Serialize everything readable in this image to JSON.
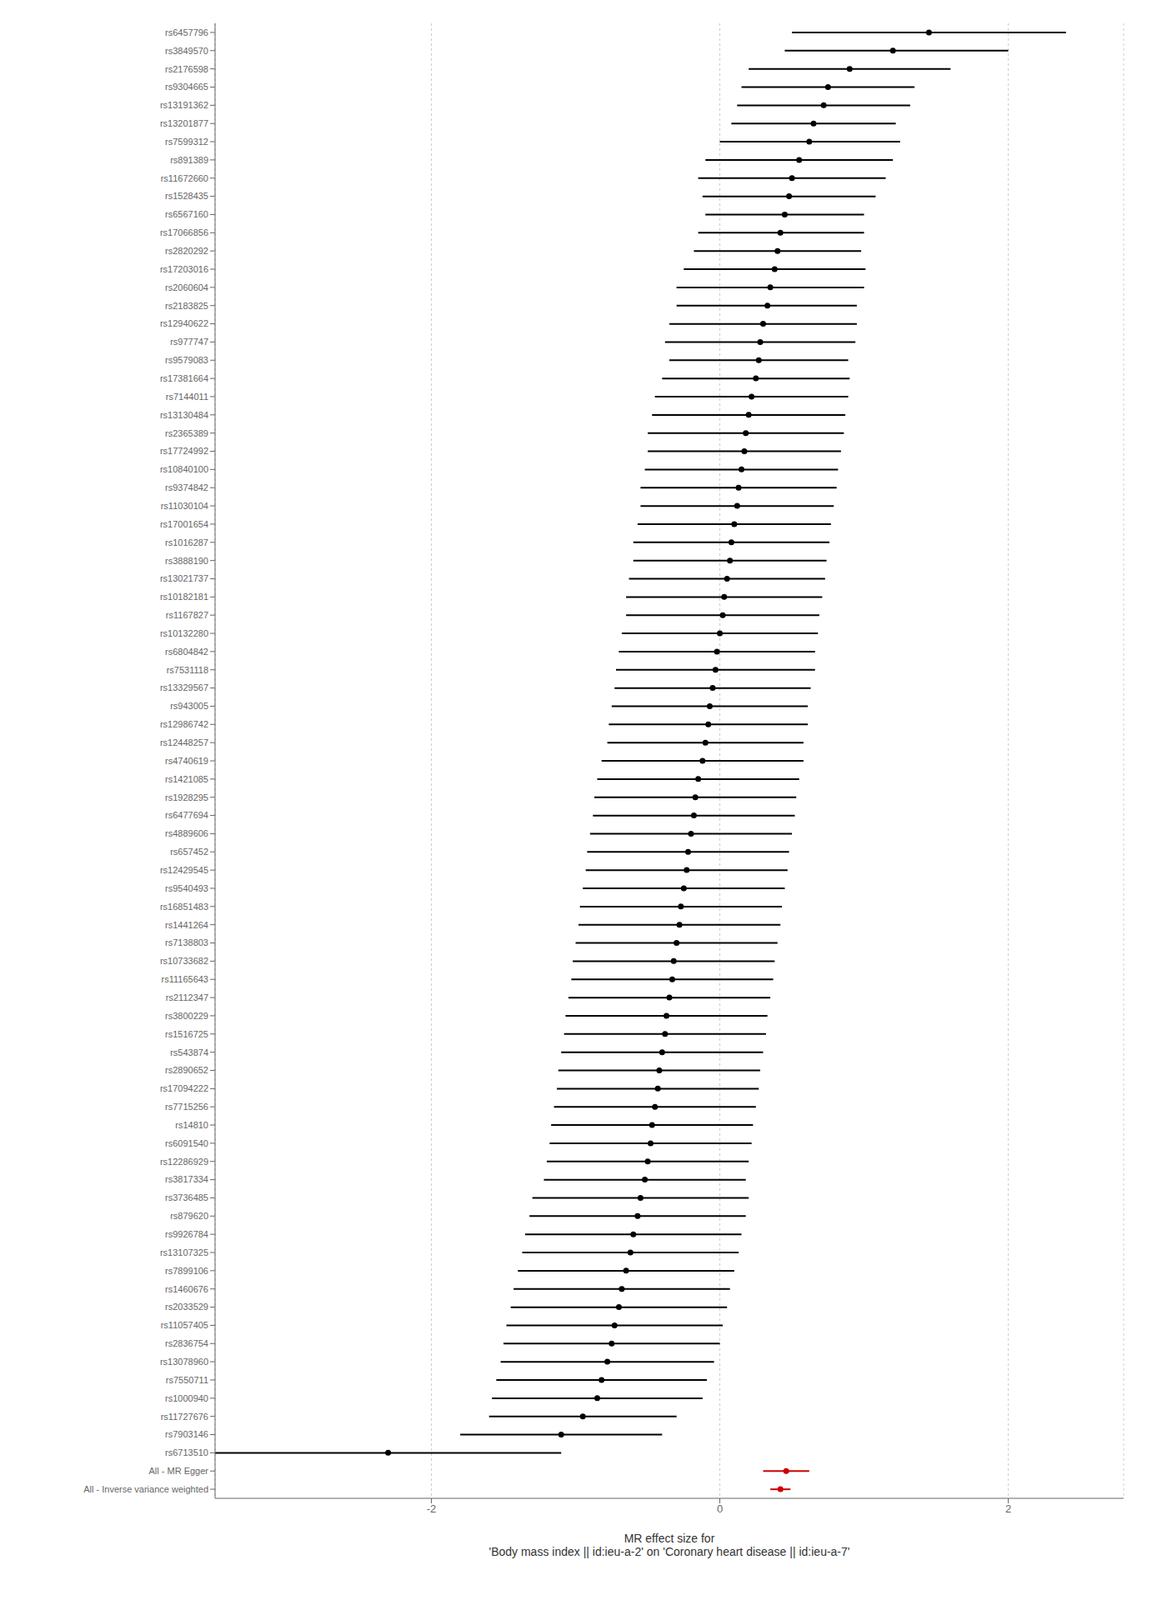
{
  "chart_data": {
    "type": "forest",
    "xlabel": "MR effect size for\n'Body mass index || id:ieu-a-2' on 'Coronary heart disease || id:ieu-a-7'",
    "categories": [
      "rs6457796",
      "rs3849570",
      "rs2176598",
      "rs9304665",
      "rs13191362",
      "rs13201877",
      "rs7599312",
      "rs891389",
      "rs11672660",
      "rs1528435",
      "rs6567160",
      "rs17066856",
      "rs2820292",
      "rs17203016",
      "rs2060604",
      "rs2183825",
      "rs12940622",
      "rs977747",
      "rs9579083",
      "rs17381664",
      "rs7144011",
      "rs13130484",
      "rs2365389",
      "rs17724992",
      "rs10840100",
      "rs9374842",
      "rs11030104",
      "rs17001654",
      "rs1016287",
      "rs3888190",
      "rs13021737",
      "rs10182181",
      "rs1167827",
      "rs10132280",
      "rs6804842",
      "rs7531118",
      "rs13329567",
      "rs943005",
      "rs12986742",
      "rs12448257",
      "rs4740619",
      "rs1421085",
      "rs1928295",
      "rs6477694",
      "rs4889606",
      "rs657452",
      "rs12429545",
      "rs9540493",
      "rs16851483",
      "rs1441264",
      "rs7138803",
      "rs10733682",
      "rs11165643",
      "rs2112347",
      "rs3800229",
      "rs1516725",
      "rs543874",
      "rs2890652",
      "rs17094222",
      "rs7715256",
      "rs14810",
      "rs6091540",
      "rs12286929",
      "rs3817334",
      "rs3736485",
      "rs879620",
      "rs9926784",
      "rs13107325",
      "rs7899106",
      "rs1460676",
      "rs2033529",
      "rs11057405",
      "rs2836754",
      "rs13078960",
      "rs7550711",
      "rs1000940",
      "rs11727676",
      "rs7903146",
      "rs6713510",
      "All - MR Egger",
      "All - Inverse variance weighted"
    ],
    "values": [
      1.45,
      1.2,
      0.9,
      0.75,
      0.72,
      0.65,
      0.62,
      0.55,
      0.5,
      0.48,
      0.45,
      0.42,
      0.4,
      0.38,
      0.35,
      0.33,
      0.3,
      0.28,
      0.27,
      0.25,
      0.22,
      0.2,
      0.18,
      0.17,
      0.15,
      0.13,
      0.12,
      0.1,
      0.08,
      0.07,
      0.05,
      0.03,
      0.02,
      0.0,
      -0.02,
      -0.03,
      -0.05,
      -0.07,
      -0.08,
      -0.1,
      -0.12,
      -0.15,
      -0.17,
      -0.18,
      -0.2,
      -0.22,
      -0.23,
      -0.25,
      -0.27,
      -0.28,
      -0.3,
      -0.32,
      -0.33,
      -0.35,
      -0.37,
      -0.38,
      -0.4,
      -0.42,
      -0.43,
      -0.45,
      -0.47,
      -0.48,
      -0.5,
      -0.52,
      -0.55,
      -0.57,
      -0.6,
      -0.62,
      -0.65,
      -0.68,
      -0.7,
      -0.73,
      -0.75,
      -0.78,
      -0.82,
      -0.85,
      -0.95,
      -1.1,
      -2.3,
      0.46,
      0.42
    ],
    "ci_low": [
      0.5,
      0.45,
      0.2,
      0.15,
      0.12,
      0.08,
      0.0,
      -0.1,
      -0.15,
      -0.12,
      -0.1,
      -0.15,
      -0.18,
      -0.25,
      -0.3,
      -0.3,
      -0.35,
      -0.38,
      -0.35,
      -0.4,
      -0.45,
      -0.47,
      -0.5,
      -0.5,
      -0.52,
      -0.55,
      -0.55,
      -0.57,
      -0.6,
      -0.6,
      -0.63,
      -0.65,
      -0.65,
      -0.68,
      -0.7,
      -0.72,
      -0.73,
      -0.75,
      -0.77,
      -0.78,
      -0.82,
      -0.85,
      -0.87,
      -0.88,
      -0.9,
      -0.92,
      -0.93,
      -0.95,
      -0.97,
      -0.98,
      -1.0,
      -1.02,
      -1.03,
      -1.05,
      -1.07,
      -1.08,
      -1.1,
      -1.12,
      -1.13,
      -1.15,
      -1.17,
      -1.18,
      -1.2,
      -1.22,
      -1.3,
      -1.32,
      -1.35,
      -1.37,
      -1.4,
      -1.43,
      -1.45,
      -1.48,
      -1.5,
      -1.52,
      -1.55,
      -1.58,
      -1.6,
      -1.8,
      -3.5,
      0.3,
      0.35
    ],
    "ci_high": [
      2.4,
      2.0,
      1.6,
      1.35,
      1.32,
      1.22,
      1.25,
      1.2,
      1.15,
      1.08,
      1.0,
      1.0,
      0.98,
      1.01,
      1.0,
      0.95,
      0.95,
      0.94,
      0.89,
      0.9,
      0.89,
      0.87,
      0.86,
      0.84,
      0.82,
      0.81,
      0.79,
      0.77,
      0.76,
      0.74,
      0.73,
      0.71,
      0.69,
      0.68,
      0.66,
      0.66,
      0.63,
      0.61,
      0.61,
      0.58,
      0.58,
      0.55,
      0.53,
      0.52,
      0.5,
      0.48,
      0.47,
      0.45,
      0.43,
      0.42,
      0.4,
      0.38,
      0.37,
      0.35,
      0.33,
      0.32,
      0.3,
      0.28,
      0.27,
      0.25,
      0.23,
      0.22,
      0.2,
      0.18,
      0.2,
      0.18,
      0.15,
      0.13,
      0.1,
      0.07,
      0.05,
      0.02,
      0.0,
      -0.04,
      -0.09,
      -0.12,
      -0.3,
      -0.4,
      -1.1,
      0.62,
      0.49
    ],
    "colors": [
      "#000000",
      "#000000",
      "#000000",
      "#000000",
      "#000000",
      "#000000",
      "#000000",
      "#000000",
      "#000000",
      "#000000",
      "#000000",
      "#000000",
      "#000000",
      "#000000",
      "#000000",
      "#000000",
      "#000000",
      "#000000",
      "#000000",
      "#000000",
      "#000000",
      "#000000",
      "#000000",
      "#000000",
      "#000000",
      "#000000",
      "#000000",
      "#000000",
      "#000000",
      "#000000",
      "#000000",
      "#000000",
      "#000000",
      "#000000",
      "#000000",
      "#000000",
      "#000000",
      "#000000",
      "#000000",
      "#000000",
      "#000000",
      "#000000",
      "#000000",
      "#000000",
      "#000000",
      "#000000",
      "#000000",
      "#000000",
      "#000000",
      "#000000",
      "#000000",
      "#000000",
      "#000000",
      "#000000",
      "#000000",
      "#000000",
      "#000000",
      "#000000",
      "#000000",
      "#000000",
      "#000000",
      "#000000",
      "#000000",
      "#000000",
      "#000000",
      "#000000",
      "#000000",
      "#000000",
      "#000000",
      "#000000",
      "#000000",
      "#000000",
      "#000000",
      "#000000",
      "#000000",
      "#000000",
      "#000000",
      "#000000",
      "#000000",
      "#cc0000",
      "#cc0000"
    ],
    "xlim": [
      -3.5,
      2.8
    ],
    "xticks": [
      -2,
      0,
      2
    ],
    "grid": true
  }
}
